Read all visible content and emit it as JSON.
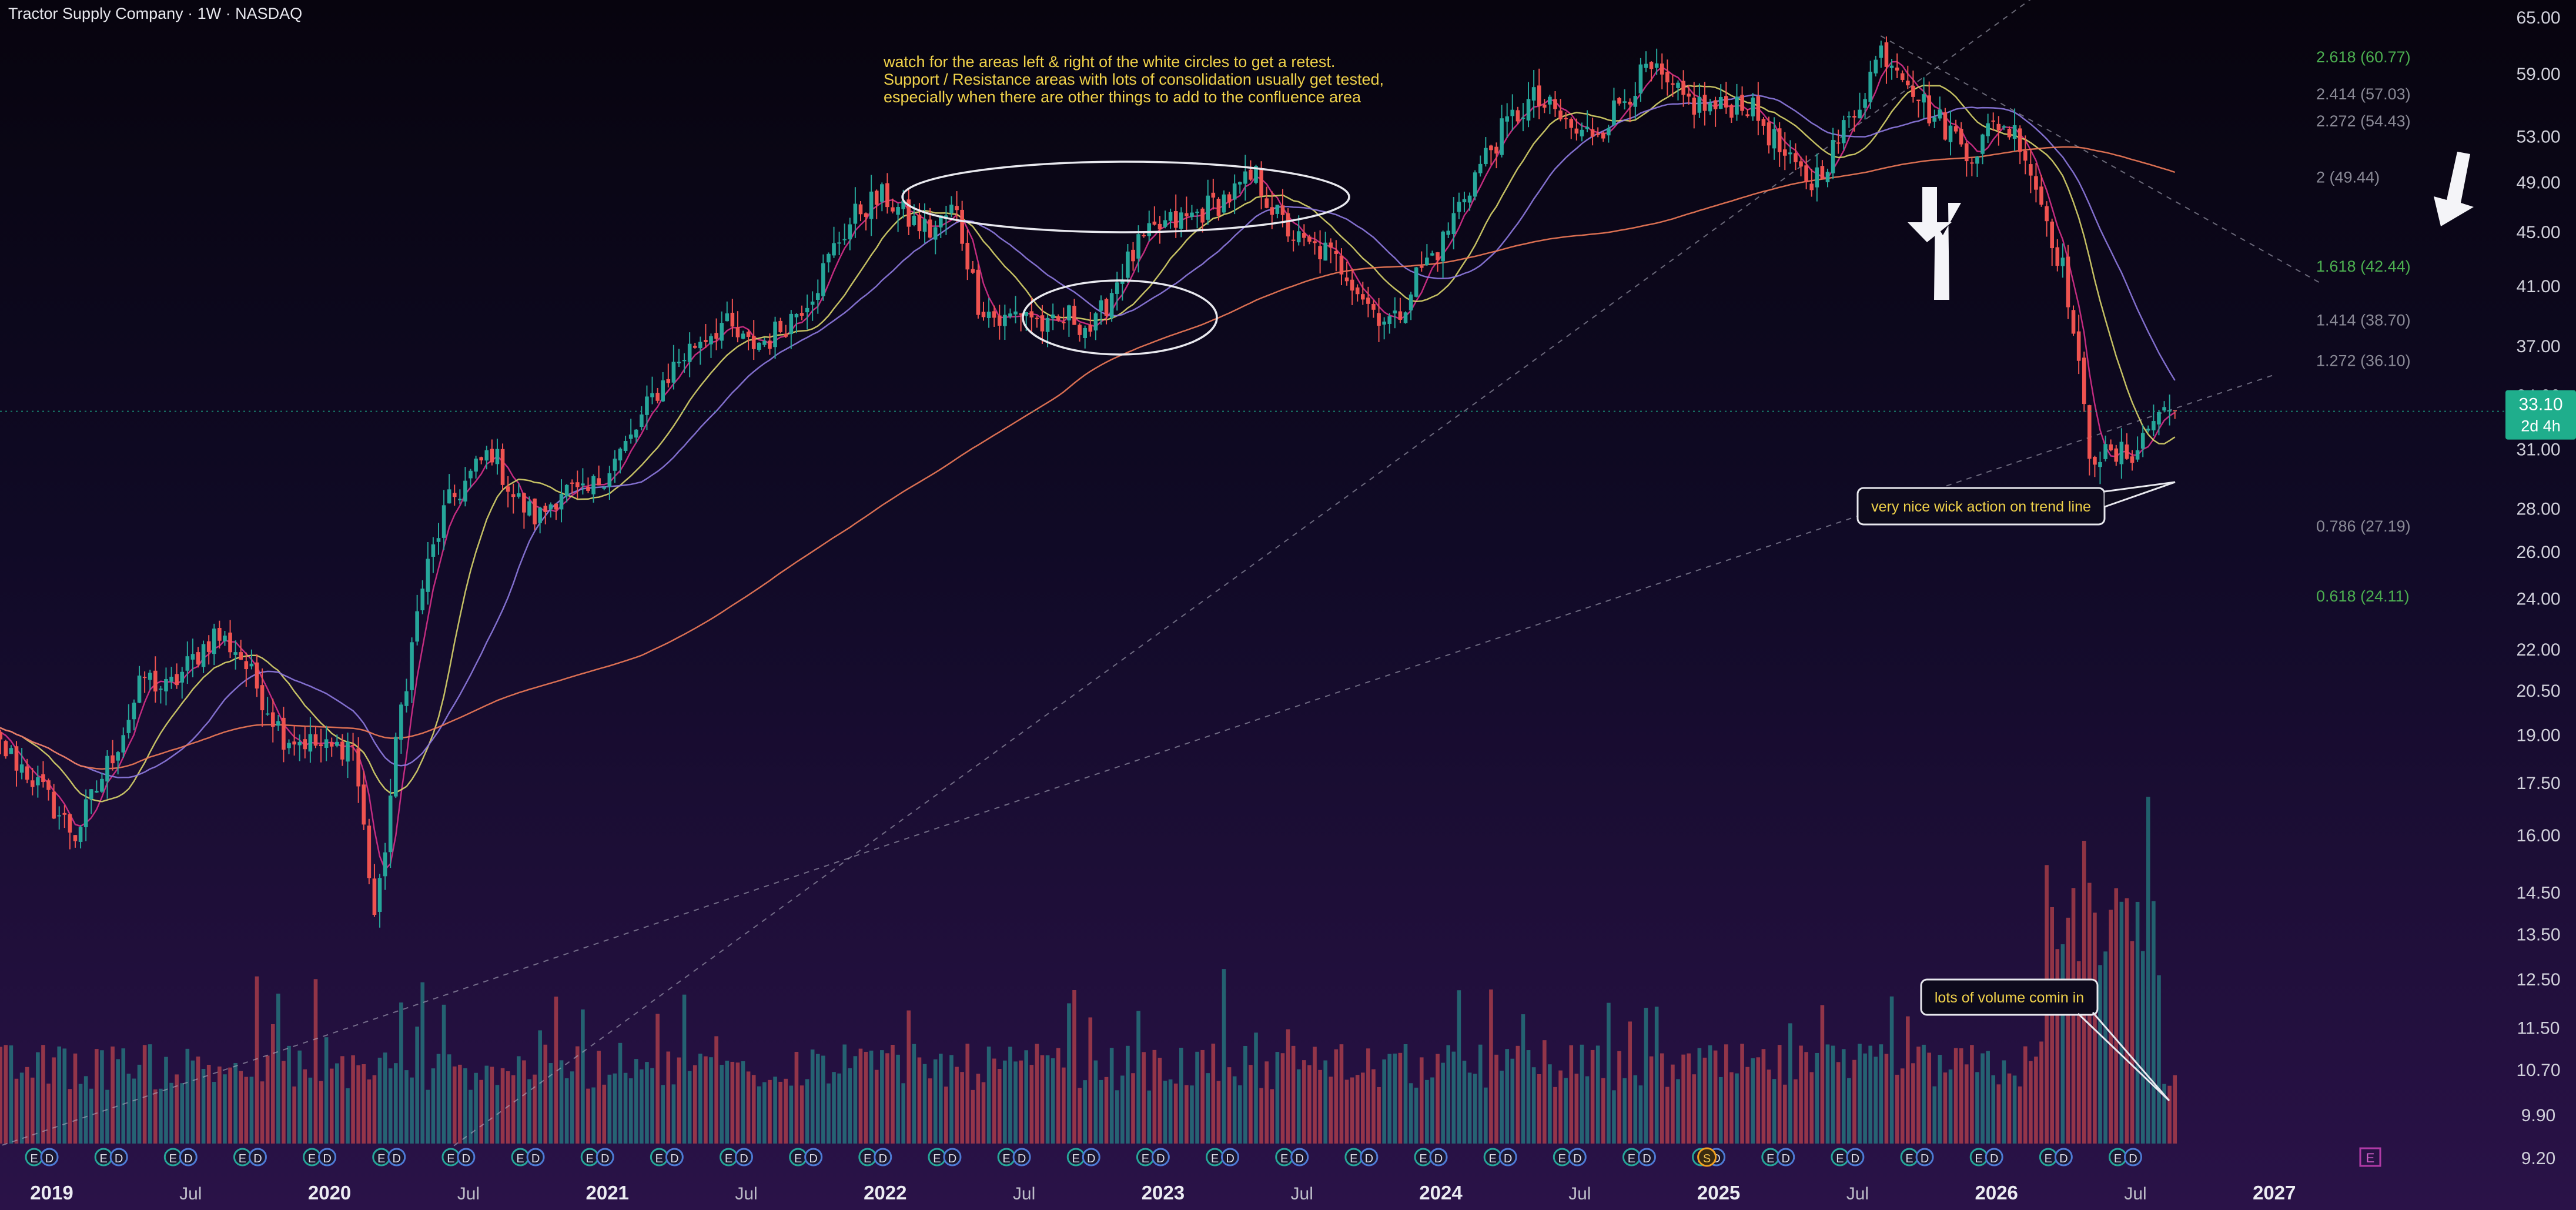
{
  "header": {
    "title": "Tractor Supply Company · 1W · NASDAQ"
  },
  "colors": {
    "up": "#26a69a",
    "down": "#ef5350",
    "price_tag": "#1fae8c",
    "note_text": "#f0d24a",
    "ma_short": "#d6308a",
    "ma_mid": "#d8d46a",
    "ma_long": "#8e7ae0",
    "ma_200": "#f07a58",
    "fib_green": "#4caf50",
    "fib_gray": "#8a8a96"
  },
  "annotations": {
    "note_lines": [
      "watch for the areas left & right of the white circles to get a retest.",
      "Support / Resistance areas with lots of consolidation usually get tested,",
      "especially when there are other things to add to the confluence area"
    ],
    "callout_wick": "very nice wick action on trend line",
    "callout_volume": "lots of volume comin in"
  },
  "price_tag": {
    "price": "33.10",
    "countdown": "2d 4h"
  },
  "chart_data": {
    "type": "candlestick",
    "title": "Tractor Supply Company · 1W · NASDAQ",
    "y_scale": "log",
    "ylim": [
      9.2,
      65.0
    ],
    "y_ticks": [
      "65.00",
      "59.00",
      "53.00",
      "49.00",
      "45.00",
      "41.00",
      "37.00",
      "34.00",
      "31.00",
      "28.00",
      "26.00",
      "24.00",
      "22.00",
      "20.50",
      "19.00",
      "17.50",
      "16.00",
      "14.50",
      "13.50",
      "12.50",
      "11.50",
      "10.70",
      "9.90",
      "9.20"
    ],
    "x_ticks": [
      {
        "label": "2019",
        "date": "2019-01"
      },
      {
        "label": "Jul",
        "date": "2019-07"
      },
      {
        "label": "2020",
        "date": "2020-01"
      },
      {
        "label": "Jul",
        "date": "2020-07"
      },
      {
        "label": "2021",
        "date": "2021-01"
      },
      {
        "label": "Jul",
        "date": "2021-07"
      },
      {
        "label": "2022",
        "date": "2022-01"
      },
      {
        "label": "Jul",
        "date": "2022-07"
      },
      {
        "label": "2023",
        "date": "2023-01"
      },
      {
        "label": "Jul",
        "date": "2023-07"
      },
      {
        "label": "2024",
        "date": "2024-01"
      },
      {
        "label": "Jul",
        "date": "2024-07"
      },
      {
        "label": "2025",
        "date": "2025-01"
      },
      {
        "label": "Jul",
        "date": "2025-07"
      },
      {
        "label": "2026",
        "date": "2026-01"
      },
      {
        "label": "Jul",
        "date": "2026-07"
      },
      {
        "label": "2027",
        "date": "2027-01"
      }
    ],
    "price_path": [
      [
        "2018-10",
        19.2
      ],
      [
        "2018-12",
        17.8
      ],
      [
        "2019-02",
        16.0
      ],
      [
        "2019-04",
        19.0
      ],
      [
        "2019-05",
        21.0
      ],
      [
        "2019-06",
        20.5
      ],
      [
        "2019-08",
        22.6
      ],
      [
        "2019-09",
        22.0
      ],
      [
        "2019-11",
        19.0
      ],
      [
        "2019-12",
        18.8
      ],
      [
        "2020-01",
        18.5
      ],
      [
        "2020-02",
        18.8
      ],
      [
        "2020-03",
        13.7
      ],
      [
        "2020-04",
        19.5
      ],
      [
        "2020-05",
        24.5
      ],
      [
        "2020-06",
        28.0
      ],
      [
        "2020-07",
        29.5
      ],
      [
        "2020-08",
        31.0
      ],
      [
        "2020-09",
        28.5
      ],
      [
        "2020-10",
        27.5
      ],
      [
        "2020-11",
        29.0
      ],
      [
        "2020-12",
        28.5
      ],
      [
        "2021-01",
        30.0
      ],
      [
        "2021-02",
        31.5
      ],
      [
        "2021-03",
        34.0
      ],
      [
        "2021-04",
        36.0
      ],
      [
        "2021-05",
        37.5
      ],
      [
        "2021-06",
        38.5
      ],
      [
        "2021-07",
        37.0
      ],
      [
        "2021-08",
        37.5
      ],
      [
        "2021-09",
        39.0
      ],
      [
        "2021-10",
        41.0
      ],
      [
        "2021-11",
        44.5
      ],
      [
        "2021-12",
        47.0
      ],
      [
        "2022-01",
        47.8
      ],
      [
        "2022-02",
        46.0
      ],
      [
        "2022-03",
        45.0
      ],
      [
        "2022-04",
        47.0
      ],
      [
        "2022-05",
        40.0
      ],
      [
        "2022-06",
        38.5
      ],
      [
        "2022-07",
        39.5
      ],
      [
        "2022-08",
        38.0
      ],
      [
        "2022-09",
        39.0
      ],
      [
        "2022-10",
        38.0
      ],
      [
        "2022-11",
        41.5
      ],
      [
        "2022-12",
        44.0
      ],
      [
        "2023-01",
        45.5
      ],
      [
        "2023-02",
        46.0
      ],
      [
        "2023-03",
        47.0
      ],
      [
        "2023-04",
        48.0
      ],
      [
        "2023-05",
        49.5
      ],
      [
        "2023-06",
        46.0
      ],
      [
        "2023-07",
        44.0
      ],
      [
        "2023-08",
        43.5
      ],
      [
        "2023-09",
        42.0
      ],
      [
        "2023-10",
        39.5
      ],
      [
        "2023-11",
        38.5
      ],
      [
        "2023-12",
        42.0
      ],
      [
        "2024-01",
        44.0
      ],
      [
        "2024-02",
        48.0
      ],
      [
        "2024-03",
        51.5
      ],
      [
        "2024-04",
        54.5
      ],
      [
        "2024-05",
        56.5
      ],
      [
        "2024-06",
        55.0
      ],
      [
        "2024-07",
        53.0
      ],
      [
        "2024-08",
        54.0
      ],
      [
        "2024-09",
        57.0
      ],
      [
        "2024-10",
        59.5
      ],
      [
        "2024-11",
        57.0
      ],
      [
        "2024-12",
        56.0
      ],
      [
        "2025-01",
        55.5
      ],
      [
        "2025-02",
        56.5
      ],
      [
        "2025-03",
        54.0
      ],
      [
        "2025-04",
        50.5
      ],
      [
        "2025-05",
        49.0
      ],
      [
        "2025-06",
        52.0
      ],
      [
        "2025-07",
        56.0
      ],
      [
        "2025-08",
        61.5
      ],
      [
        "2025-09",
        59.5
      ],
      [
        "2025-10",
        55.5
      ],
      [
        "2025-11",
        53.5
      ],
      [
        "2025-12",
        51.5
      ],
      [
        "2026-01",
        54.5
      ],
      [
        "2026-02",
        53.0
      ],
      [
        "2026-03",
        47.0
      ],
      [
        "2026-04",
        41.5
      ],
      [
        "2026-05",
        31.0
      ],
      [
        "2026-06",
        30.5
      ],
      [
        "2026-07",
        31.0
      ],
      [
        "2026-08",
        33.1
      ]
    ],
    "last_price": 33.1,
    "fib_levels": [
      {
        "label": "2.618 (60.77)",
        "value": 60.77,
        "color": "green"
      },
      {
        "label": "2.414 (57.03)",
        "value": 57.03,
        "color": "gray"
      },
      {
        "label": "2.272 (54.43)",
        "value": 54.43,
        "color": "gray"
      },
      {
        "label": "2 (49.44)",
        "value": 49.44,
        "color": "gray"
      },
      {
        "label": "1.618 (42.44)",
        "value": 42.44,
        "color": "green"
      },
      {
        "label": "1.414 (38.70)",
        "value": 38.7,
        "color": "gray"
      },
      {
        "label": "1.272 (36.10)",
        "value": 36.1,
        "color": "gray"
      },
      {
        "label": "0.786 (27.19)",
        "value": 27.19,
        "color": "gray"
      },
      {
        "label": "0.618 (24.11)",
        "value": 24.11,
        "color": "green"
      }
    ],
    "moving_averages": [
      {
        "color": "ma_short",
        "lag_weeks": 4
      },
      {
        "color": "ma_mid",
        "lag_weeks": 14
      },
      {
        "color": "ma_long",
        "lag_weeks": 26
      },
      {
        "color": "ma_200",
        "lag_weeks": 130
      }
    ],
    "trendlines": [
      {
        "style": "dashed",
        "from": [
          "2018-10",
          9.3
        ],
        "to": [
          "2026-08",
          33.6
        ]
      },
      {
        "style": "dashed",
        "from": [
          "2020-06",
          9.3
        ],
        "to": [
          "2025-10",
          65.0
        ]
      },
      {
        "style": "dashed",
        "from": [
          "2025-08",
          63.0
        ],
        "to": [
          "2026-10",
          42.0
        ]
      }
    ],
    "event_markers_earnings": "E",
    "event_markers_dividend": "D",
    "event_markers_split": "S"
  }
}
